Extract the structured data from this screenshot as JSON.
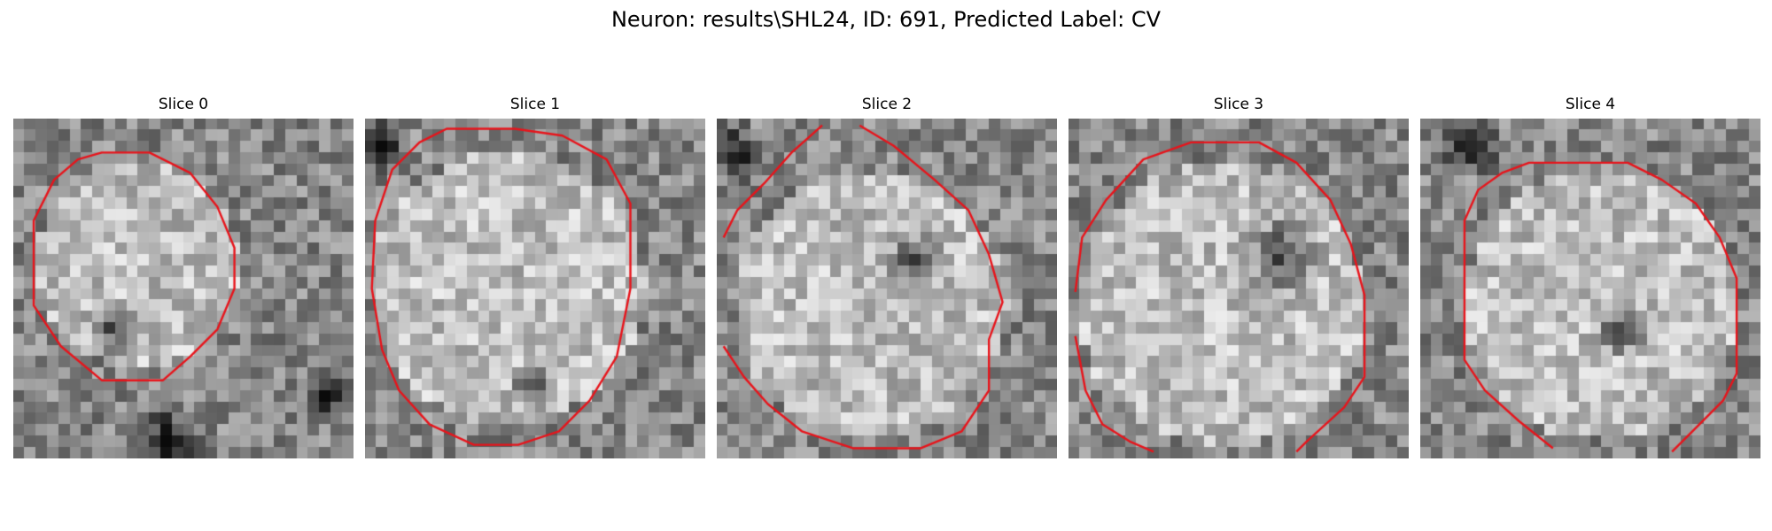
{
  "figure": {
    "title": "Neuron: results\\SHL24, ID: 691, Predicted Label: CV"
  },
  "colors": {
    "contour": "#e8141b",
    "background": "#ffffff"
  },
  "slices": [
    {
      "title": "Slice 0",
      "seed": 11,
      "dark_blobs": [
        [
          0.3,
          0.62,
          0.1
        ],
        [
          0.93,
          0.82,
          0.1
        ],
        [
          0.45,
          0.95,
          0.12
        ]
      ]
    },
    {
      "title": "Slice 1",
      "seed": 23,
      "dark_blobs": [
        [
          0.5,
          0.78,
          0.08
        ],
        [
          0.05,
          0.08,
          0.1
        ]
      ]
    },
    {
      "title": "Slice 2",
      "seed": 37,
      "dark_blobs": [
        [
          0.58,
          0.42,
          0.1
        ],
        [
          0.05,
          0.1,
          0.1
        ]
      ]
    },
    {
      "title": "Slice 3",
      "seed": 41,
      "dark_blobs": [
        [
          0.62,
          0.4,
          0.14
        ]
      ]
    },
    {
      "title": "Slice 4",
      "seed": 53,
      "dark_blobs": [
        [
          0.15,
          0.08,
          0.1
        ],
        [
          0.6,
          0.62,
          0.1
        ]
      ]
    }
  ]
}
